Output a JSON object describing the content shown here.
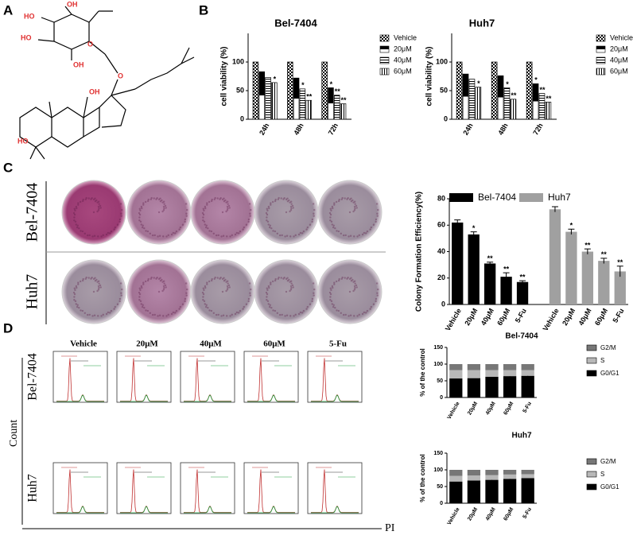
{
  "panels": [
    "A",
    "B",
    "C",
    "D"
  ],
  "structure": {
    "labels": [
      "OH",
      "HO",
      "HO",
      "OH",
      "O",
      "O",
      "OH",
      "HO"
    ]
  },
  "colony_plates": {
    "columns": [
      "Vehicle",
      "20μM",
      "40μM",
      "60μM",
      "5-Fu"
    ],
    "rows": [
      "Bel-7404",
      "Huh7"
    ]
  },
  "flow": {
    "columns": [
      "Vehicle",
      "20μM",
      "40μM",
      "60μM",
      "5-Fu"
    ],
    "rows": [
      "Bel-7404",
      "Huh7"
    ],
    "y_label": "Count",
    "x_label": "PI"
  },
  "chart_data": [
    {
      "type": "grouped_bar",
      "title": "Bel-7404",
      "y_label": "cell viability  (%)",
      "categories": [
        "24h",
        "48h",
        "72h"
      ],
      "ylim": [
        0,
        150
      ],
      "yticks": [
        0,
        50,
        100
      ],
      "series": [
        {
          "name": "Vehicle",
          "color": "#000000",
          "pattern": "checker",
          "values": [
            100,
            100,
            100
          ],
          "annotations": [
            null,
            null,
            null
          ]
        },
        {
          "name": "20μM",
          "color": "#000000",
          "pattern": "half",
          "values": [
            83,
            72,
            55
          ],
          "annotations": [
            null,
            null,
            "*"
          ]
        },
        {
          "name": "40μM",
          "color": "#000000",
          "pattern": "hstripe",
          "values": [
            73,
            53,
            42
          ],
          "annotations": [
            null,
            "*",
            "**"
          ]
        },
        {
          "name": "60μM",
          "color": "#000000",
          "pattern": "vstripe",
          "values": [
            64,
            33,
            27
          ],
          "annotations": [
            "*",
            "**",
            "**"
          ]
        }
      ]
    },
    {
      "type": "grouped_bar",
      "title": "Huh7",
      "y_label": "cell viability  (%)",
      "categories": [
        "24h",
        "48h",
        "72h"
      ],
      "ylim": [
        0,
        150
      ],
      "yticks": [
        0,
        50,
        100
      ],
      "series": [
        {
          "name": "Vehicle",
          "color": "#000000",
          "pattern": "checker",
          "values": [
            100,
            100,
            100
          ],
          "annotations": [
            null,
            null,
            null
          ]
        },
        {
          "name": "20μM",
          "color": "#000000",
          "pattern": "half",
          "values": [
            79,
            76,
            62
          ],
          "annotations": [
            null,
            null,
            "*"
          ]
        },
        {
          "name": "40μM",
          "color": "#000000",
          "pattern": "hstripe",
          "values": [
            70,
            55,
            45
          ],
          "annotations": [
            null,
            "*",
            "**"
          ]
        },
        {
          "name": "60μM",
          "color": "#000000",
          "pattern": "vstripe",
          "values": [
            56,
            35,
            30
          ],
          "annotations": [
            "*",
            "**",
            "**"
          ]
        }
      ]
    },
    {
      "type": "bar",
      "y_label": "Colony Formation Efficiency(%)",
      "categories": [
        "Vehicle",
        "20μM",
        "40μM",
        "60μM",
        "5-Fu"
      ],
      "ylim": [
        0,
        80
      ],
      "yticks": [
        0,
        20,
        40,
        60,
        80
      ],
      "series": [
        {
          "name": "Bel-7404",
          "color": "#000000",
          "values": [
            62,
            53,
            31,
            21,
            17
          ],
          "errors": [
            2,
            2,
            1,
            3,
            1
          ],
          "annotations": [
            null,
            "*",
            "**",
            "**",
            "**"
          ]
        },
        {
          "name": "Huh7",
          "color": "#a0a0a0",
          "values": [
            72,
            55,
            40,
            33,
            25
          ],
          "errors": [
            2,
            2,
            2,
            2,
            4
          ],
          "annotations": [
            null,
            "*",
            "**",
            "**",
            "**"
          ]
        }
      ]
    },
    {
      "type": "stacked_bar",
      "title": "Bel-7404",
      "y_label": "% of the control",
      "categories": [
        "Vehicle",
        "20μM",
        "40μM",
        "60μM",
        "5-Fu"
      ],
      "ylim": [
        0,
        150
      ],
      "yticks": [
        0,
        50,
        100,
        150
      ],
      "series": [
        {
          "name": "G0/G1",
          "color": "#000000",
          "values": [
            57,
            58,
            62,
            64,
            65
          ],
          "annotations": [
            null,
            null,
            "*",
            "*",
            "*"
          ]
        },
        {
          "name": "S",
          "color": "#b8b8b8",
          "values": [
            25,
            24,
            20,
            18,
            17
          ]
        },
        {
          "name": "G2/M",
          "color": "#777777",
          "values": [
            18,
            18,
            18,
            18,
            18
          ]
        }
      ]
    },
    {
      "type": "stacked_bar",
      "title": "Huh7",
      "y_label": "% of the control",
      "categories": [
        "Vehicle",
        "20μM",
        "40μM",
        "60μM",
        "5-Fu"
      ],
      "ylim": [
        0,
        150
      ],
      "yticks": [
        0,
        50,
        100,
        150
      ],
      "series": [
        {
          "name": "G0/G1",
          "color": "#000000",
          "values": [
            65,
            68,
            70,
            73,
            75
          ],
          "annotations": [
            null,
            null,
            "*",
            "*",
            "*"
          ]
        },
        {
          "name": "S",
          "color": "#b8b8b8",
          "values": [
            17,
            15,
            14,
            13,
            12
          ]
        },
        {
          "name": "G2/M",
          "color": "#777777",
          "values": [
            18,
            17,
            16,
            14,
            13
          ]
        }
      ]
    }
  ]
}
